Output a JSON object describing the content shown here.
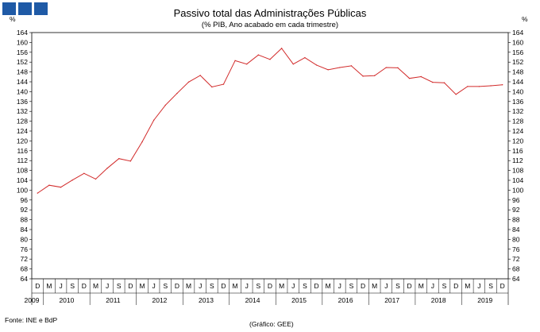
{
  "header": {
    "logo_squares": 3,
    "logo_color": "#1f5aa6"
  },
  "footer": {
    "source": "Fonte: INE e BdP",
    "credit": "(Gráfico: GEE)"
  },
  "chart_data": {
    "type": "line",
    "title": "Passivo total das Administrações Públicas",
    "subtitle": "(% PIB, Ano acabado em cada trimestre)",
    "y_unit_left": "%",
    "y_unit_right": "%",
    "ylim": [
      64,
      164
    ],
    "y_ticks": [
      64,
      68,
      72,
      76,
      80,
      84,
      88,
      92,
      96,
      100,
      104,
      108,
      112,
      116,
      120,
      124,
      128,
      132,
      136,
      140,
      144,
      148,
      152,
      156,
      160,
      164
    ],
    "grid": false,
    "line_color": "#d22b2b",
    "quarter_labels": [
      "D",
      "M",
      "J",
      "S",
      "D",
      "M",
      "J",
      "S",
      "D",
      "M",
      "J",
      "S",
      "D",
      "M",
      "J",
      "S",
      "D",
      "M",
      "J",
      "S",
      "D",
      "M",
      "J",
      "S",
      "D",
      "M",
      "J",
      "S",
      "D",
      "M",
      "J",
      "S",
      "D",
      "M",
      "J",
      "S",
      "D",
      "M",
      "J",
      "S",
      "D"
    ],
    "year_labels": [
      "2009",
      "2010",
      "2011",
      "2012",
      "2013",
      "2014",
      "2015",
      "2016",
      "2017",
      "2018",
      "2019"
    ],
    "x": [
      "2009-12",
      "2010-03",
      "2010-06",
      "2010-09",
      "2010-12",
      "2011-03",
      "2011-06",
      "2011-09",
      "2011-12",
      "2012-03",
      "2012-06",
      "2012-09",
      "2012-12",
      "2013-03",
      "2013-06",
      "2013-09",
      "2013-12",
      "2014-03",
      "2014-06",
      "2014-09",
      "2014-12",
      "2015-03",
      "2015-06",
      "2015-09",
      "2015-12",
      "2016-03",
      "2016-06",
      "2016-09",
      "2016-12",
      "2017-03",
      "2017-06",
      "2017-09",
      "2017-12",
      "2018-03",
      "2018-06",
      "2018-09",
      "2018-12",
      "2019-03",
      "2019-06",
      "2019-09",
      "2019-12"
    ],
    "series": [
      {
        "values": [
          98.8,
          102.0,
          101.2,
          104.1,
          106.8,
          104.5,
          108.9,
          112.8,
          111.8,
          119.6,
          128.4,
          134.5,
          139.3,
          143.9,
          146.6,
          141.9,
          143.0,
          152.6,
          151.2,
          154.9,
          153.1,
          157.6,
          151.2,
          153.8,
          150.8,
          148.9,
          149.8,
          150.5,
          146.3,
          146.5,
          149.8,
          149.7,
          145.4,
          146.1,
          143.8,
          143.6,
          138.9,
          142.1,
          142.1,
          142.4,
          142.8
        ]
      }
    ]
  }
}
